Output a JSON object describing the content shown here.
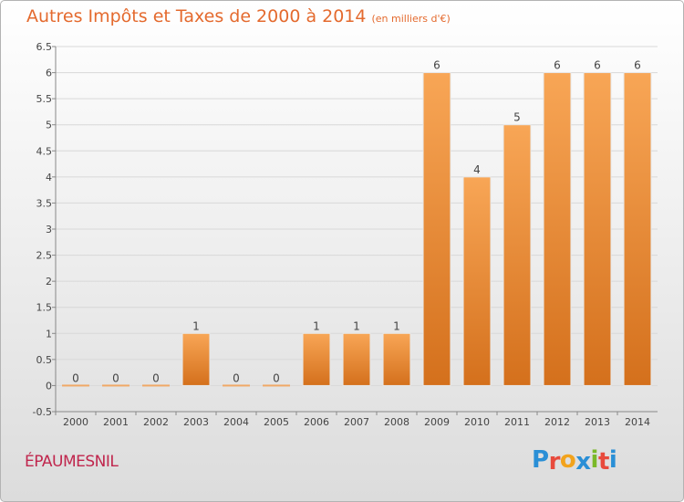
{
  "header": {
    "title": "Autres Impôts et Taxes de 2000 à 2014",
    "subtitle": "(en milliers d'€)"
  },
  "town_name": "ÉPAUMESNIL",
  "logo": {
    "text": "Proxiti",
    "letters": [
      {
        "char": "P",
        "color": "#2a8fd6"
      },
      {
        "char": "r",
        "color": "#e84a3c"
      },
      {
        "char": "o",
        "color": "#f2a31d"
      },
      {
        "char": "x",
        "color": "#2a8fd6"
      },
      {
        "char": "i",
        "color": "#7ab929"
      },
      {
        "char": "t",
        "color": "#e84a3c"
      },
      {
        "char": "i",
        "color": "#2a8fd6"
      }
    ]
  },
  "colors": {
    "bar_top": "#f8a656",
    "bar_bottom": "#d4701c",
    "zero_bar": "#f0a866",
    "title": "#e46a2e",
    "town": "#c0264d",
    "grid": "#d8d8d8",
    "text": "#444444"
  },
  "chart_data": {
    "type": "bar",
    "title": "Autres Impôts et Taxes de 2000 à 2014",
    "subtitle": "(en milliers d'€)",
    "categories": [
      "2000",
      "2001",
      "2002",
      "2003",
      "2004",
      "2005",
      "2006",
      "2007",
      "2008",
      "2009",
      "2010",
      "2011",
      "2012",
      "2013",
      "2014"
    ],
    "values": [
      0,
      0,
      0,
      1,
      0,
      0,
      1,
      1,
      1,
      6,
      4,
      5,
      6,
      6,
      6
    ],
    "data_labels": [
      "0",
      "0",
      "0",
      "1",
      "0",
      "0",
      "1",
      "1",
      "1",
      "6",
      "4",
      "5",
      "6",
      "6",
      "6"
    ],
    "ylim": [
      -0.5,
      6.5
    ],
    "yticks": [
      -0.5,
      0,
      0.5,
      1,
      1.5,
      2,
      2.5,
      3,
      3.5,
      4,
      4.5,
      5,
      5.5,
      6,
      6.5
    ],
    "ytick_labels": [
      "-0.5",
      "0",
      "0.5",
      "1",
      "1.5",
      "2",
      "2.5",
      "3",
      "3.5",
      "4",
      "4.5",
      "5",
      "5.5",
      "6",
      "6.5"
    ],
    "grid": true,
    "legend": "none"
  }
}
